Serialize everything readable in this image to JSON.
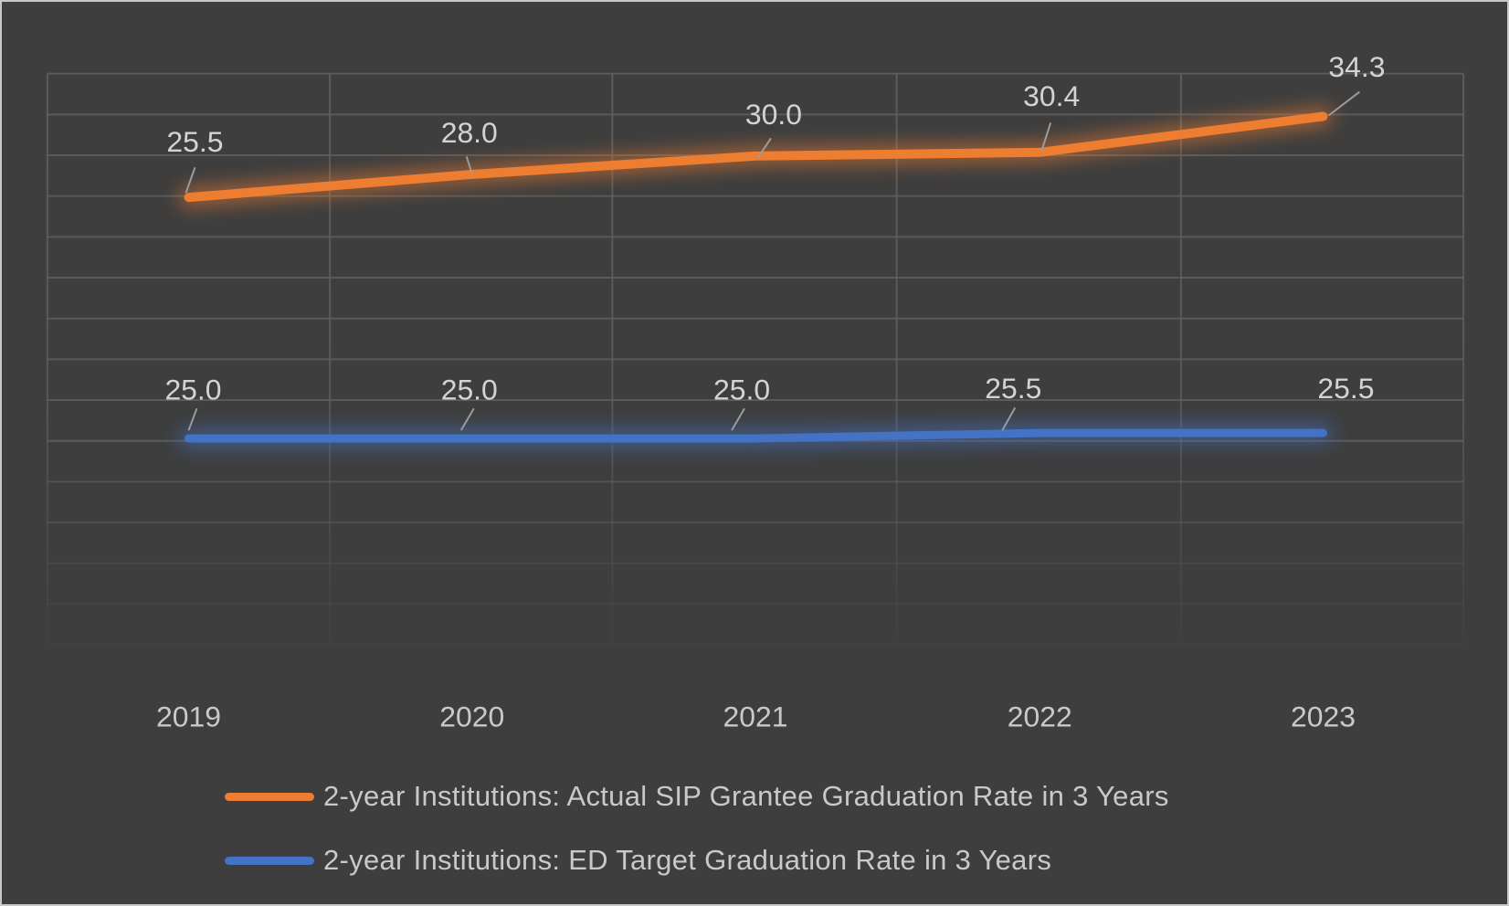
{
  "chart_data": {
    "type": "line",
    "categories": [
      "2019",
      "2020",
      "2021",
      "2022",
      "2023"
    ],
    "series": [
      {
        "name": "2-year Institutions: Actual SIP Grantee Graduation Rate in 3 Years",
        "color": "#ED7D31",
        "values": [
          25.5,
          28.0,
          30.0,
          30.4,
          34.3
        ],
        "labels": [
          "25.5",
          "28.0",
          "30.0",
          "30.4",
          "34.3"
        ]
      },
      {
        "name": "2-year Institutions: ED Target Graduation Rate in 3 Years",
        "color": "#4472C4",
        "values": [
          25.0,
          25.0,
          25.0,
          25.5,
          25.5
        ],
        "labels": [
          "25.0",
          "25.0",
          "25.0",
          "25.5",
          "25.5"
        ]
      }
    ],
    "title": "",
    "xlabel": "",
    "ylabel": "",
    "legend_position": "bottom",
    "grid": true,
    "axes_hidden": true
  },
  "colors": {
    "background": "#3e3e3e",
    "frame_border": "#c8c8c8",
    "gridline": "#616161",
    "data_label": "#d3d3d3",
    "axis_label": "#c9c9c9",
    "leader": "#9b9b9b",
    "series_actual": "#ED7D31",
    "series_target": "#4472C4"
  }
}
